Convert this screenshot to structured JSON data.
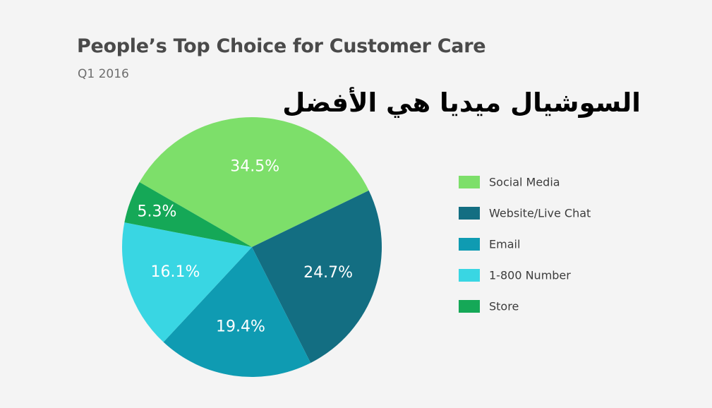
{
  "title": "People’s Top Choice for Customer Care",
  "subtitle": "Q1 2016",
  "overlay_text": "السوشيال ميديا هي الأفضل",
  "chart_data": {
    "type": "pie",
    "title": "People’s Top Choice for Customer Care",
    "subtitle": "Q1 2016",
    "legend_position": "right",
    "slices": [
      {
        "label": "Social Media",
        "value": 34.5,
        "display": "34.5%",
        "color": "#7ddf6a"
      },
      {
        "label": "Website/Live Chat",
        "value": 24.7,
        "display": "24.7%",
        "color": "#136e82"
      },
      {
        "label": "Email",
        "value": 19.4,
        "display": "19.4%",
        "color": "#0f9bb2"
      },
      {
        "label": "1-800 Number",
        "value": 16.1,
        "display": "16.1%",
        "color": "#39d6e3"
      },
      {
        "label": "Store",
        "value": 5.3,
        "display": "5.3%",
        "color": "#15a857"
      }
    ]
  }
}
